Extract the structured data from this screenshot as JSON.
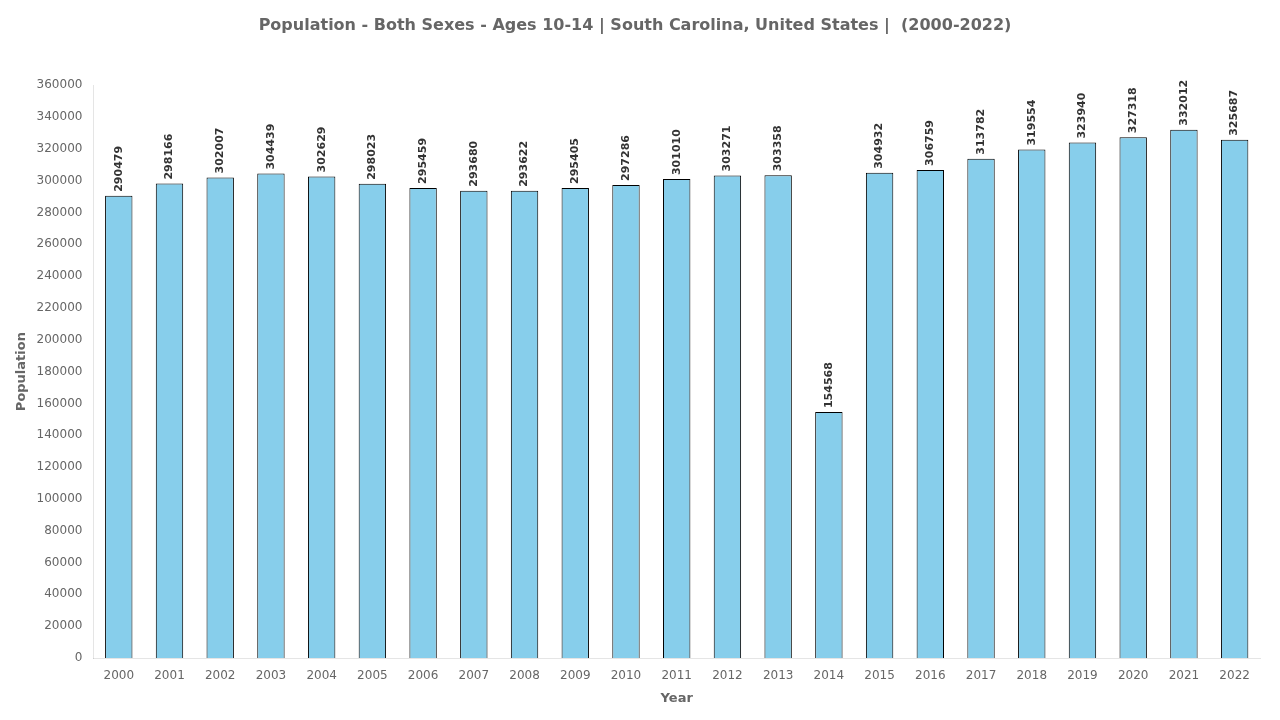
{
  "chart_data": {
    "type": "bar",
    "title": "Population - Both Sexes - Ages 10-14 | South Carolina, United States |  (2000-2022)",
    "xlabel": "Year",
    "ylabel": "Population",
    "categories": [
      "2000",
      "2001",
      "2002",
      "2003",
      "2004",
      "2005",
      "2006",
      "2007",
      "2008",
      "2009",
      "2010",
      "2011",
      "2012",
      "2013",
      "2014",
      "2015",
      "2016",
      "2017",
      "2018",
      "2019",
      "2020",
      "2021",
      "2022"
    ],
    "values": [
      290479,
      298166,
      302007,
      304439,
      302629,
      298023,
      295459,
      293680,
      293622,
      295405,
      297286,
      301010,
      303271,
      303358,
      154568,
      304932,
      306759,
      313782,
      319554,
      323940,
      327318,
      332012,
      325687
    ],
    "color": "#87CEEB",
    "ylim": [
      0,
      360000
    ],
    "yticks": [
      0,
      20000,
      40000,
      60000,
      80000,
      100000,
      120000,
      140000,
      160000,
      180000,
      200000,
      220000,
      240000,
      260000,
      280000,
      300000,
      320000,
      340000,
      360000
    ],
    "data_labels": true,
    "grid": false
  }
}
